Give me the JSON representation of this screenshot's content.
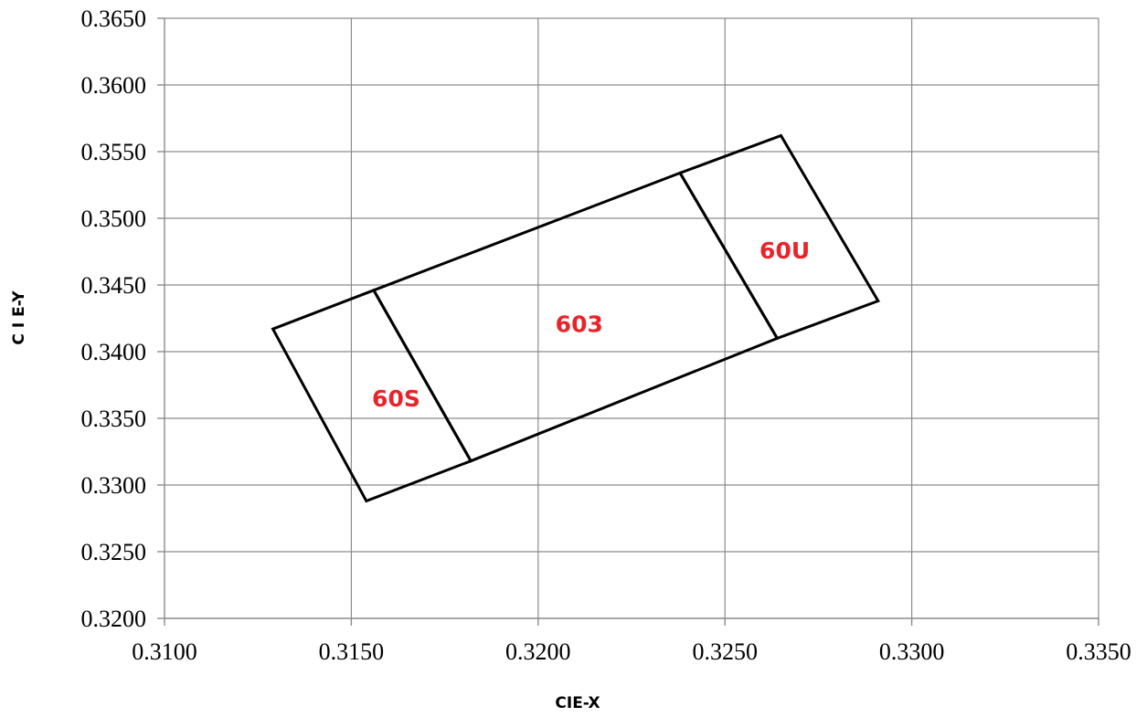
{
  "chart_data": {
    "type": "scatter",
    "xlabel": "CIE-X",
    "ylabel": "C I E-Y",
    "xlim": [
      0.31,
      0.335
    ],
    "ylim": [
      0.32,
      0.365
    ],
    "x_ticks": [
      "0.3100",
      "0.3150",
      "0.3200",
      "0.3250",
      "0.3300",
      "0.3350"
    ],
    "y_ticks": [
      "0.3200",
      "0.3250",
      "0.3300",
      "0.3350",
      "0.3400",
      "0.3450",
      "0.3500",
      "0.3550",
      "0.3600",
      "0.3650"
    ],
    "grid": true,
    "label_color": "#e8242a",
    "line_color": "#000000",
    "regions": [
      {
        "name": "60S",
        "label_position": [
          0.3162,
          0.3365
        ],
        "vertices": [
          [
            0.3129,
            0.3417
          ],
          [
            0.3156,
            0.3446
          ],
          [
            0.3182,
            0.3318
          ],
          [
            0.3154,
            0.3288
          ]
        ]
      },
      {
        "name": "603",
        "label_position": [
          0.3211,
          0.3421
        ],
        "vertices": [
          [
            0.3156,
            0.3446
          ],
          [
            0.3238,
            0.3534
          ],
          [
            0.3264,
            0.341
          ],
          [
            0.3182,
            0.3318
          ]
        ]
      },
      {
        "name": "60U",
        "label_position": [
          0.3266,
          0.3476
        ],
        "vertices": [
          [
            0.3238,
            0.3534
          ],
          [
            0.3265,
            0.3562
          ],
          [
            0.3291,
            0.3438
          ],
          [
            0.3264,
            0.341
          ]
        ]
      }
    ]
  }
}
